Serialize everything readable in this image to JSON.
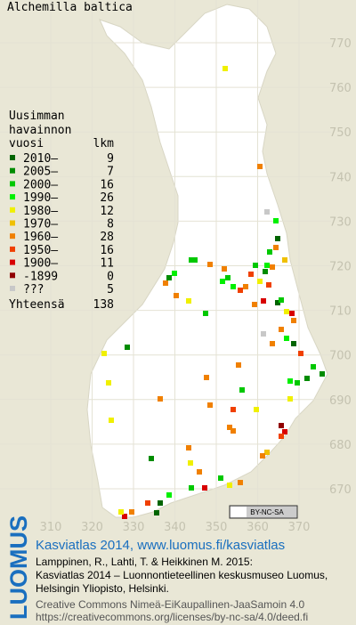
{
  "title": "Alchemilla baltica",
  "legend": {
    "heading": [
      "Uusimman",
      "havainnon"
    ],
    "column_year": "vuosi",
    "column_count": "lkm",
    "rows": [
      {
        "label": "2010–",
        "count": 9,
        "color": "#006400"
      },
      {
        "label": "2005–",
        "count": 7,
        "color": "#008c00"
      },
      {
        "label": "2000–",
        "count": 16,
        "color": "#00c800"
      },
      {
        "label": "1990–",
        "count": 26,
        "color": "#00f000"
      },
      {
        "label": "1980–",
        "count": 12,
        "color": "#f0f000"
      },
      {
        "label": "1970–",
        "count": 8,
        "color": "#f0c000"
      },
      {
        "label": "1960–",
        "count": 28,
        "color": "#f08000"
      },
      {
        "label": "1950–",
        "count": 16,
        "color": "#f04000"
      },
      {
        "label": "1900–",
        "count": 11,
        "color": "#d80000"
      },
      {
        "label": "-1899",
        "count": 0,
        "color": "#900000"
      },
      {
        "label": "???",
        "count": 5,
        "color": "#c8c8c8"
      }
    ],
    "total_label": "Yhteensä",
    "total_count": 138
  },
  "grid": {
    "north": [
      770,
      760,
      750,
      740,
      730,
      720,
      710,
      700,
      690,
      680,
      670
    ],
    "east": [
      310,
      320,
      330,
      340,
      350,
      360,
      370
    ]
  },
  "license_badge": "BY-NC-SA",
  "footer": {
    "logo": "LUOMUS",
    "link": "Kasviatlas 2014, www.luomus.fi/kasviatlas",
    "citation": [
      "Lamppinen, R., Lahti, T. & Heikkinen M. 2015:",
      "Kasviatlas 2014 – Luonnontieteellinen keskusmuseo Luomus,",
      "Helsingin Yliopisto, Helsinki."
    ],
    "license": [
      "Creative Commons Nimeä-EiKaupallinen-JaaSamoin 4.0",
      "https://creativecommons.org/licenses/by-nc-sa/4.0/deed.fi"
    ]
  }
}
